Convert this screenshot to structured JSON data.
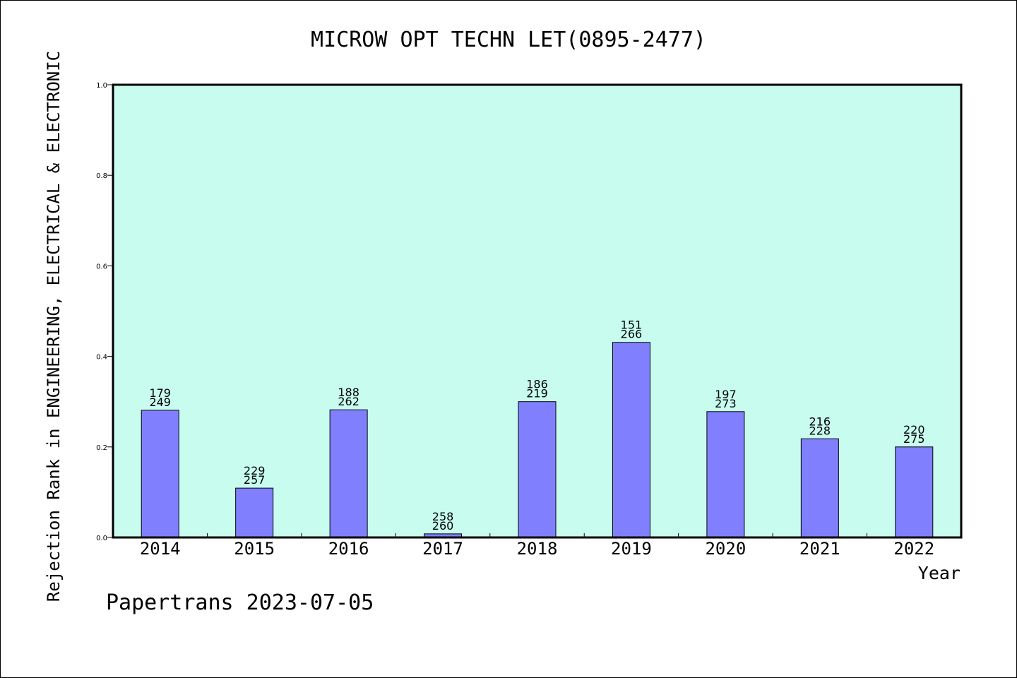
{
  "chart_data": {
    "type": "bar",
    "title": "MICROW OPT TECHN LET(0895-2477)",
    "xlabel": "Year",
    "ylabel": "Rejection Rank in ENGINEERING, ELECTRICAL & ELECTRONIC",
    "ylim": [
      0,
      1.0
    ],
    "yticks": [
      "0.0",
      "0.2",
      "0.4",
      "0.6",
      "0.8",
      "1.0"
    ],
    "categories": [
      "2014",
      "2015",
      "2016",
      "2017",
      "2018",
      "2019",
      "2020",
      "2021",
      "2022"
    ],
    "values": [
      0.281,
      0.109,
      0.282,
      0.008,
      0.3,
      0.431,
      0.278,
      0.218,
      0.2
    ],
    "label_top": [
      "179",
      "229",
      "188",
      "258",
      "186",
      "151",
      "197",
      "216",
      "220"
    ],
    "label_bottom": [
      "249",
      "257",
      "262",
      "260",
      "219",
      "266",
      "273",
      "228",
      "275"
    ],
    "grid": false,
    "colors": {
      "plot_bg": "#c8fcef",
      "bar": "#8080ff",
      "bar_edge": "#000000"
    }
  },
  "footer": "Papertrans 2023-07-05"
}
